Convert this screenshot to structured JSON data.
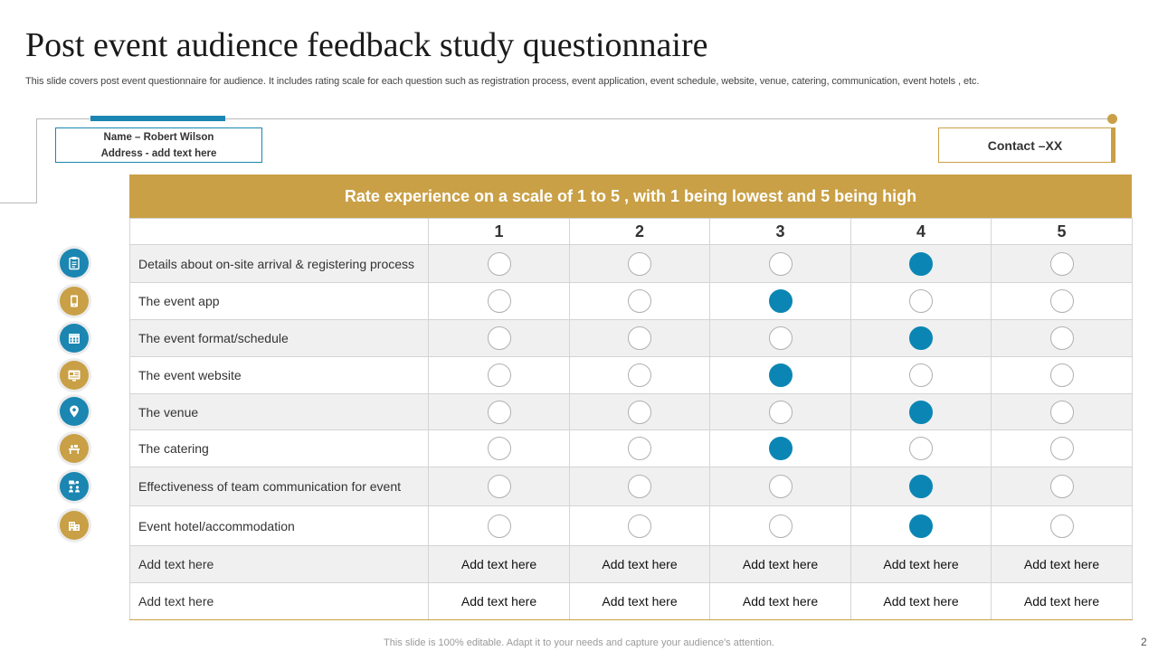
{
  "title": "Post event audience feedback study questionnaire",
  "subtitle": "This slide covers post event questionnaire for audience. It includes rating scale for each question such as registration process, event application, event schedule, website, venue, catering, communication, event hotels , etc.",
  "name_box": {
    "name": "Name – Robert Wilson",
    "address": "Address  - add text here"
  },
  "contact": "Contact –XX",
  "table": {
    "header": "Rate experience on a scale of 1 to 5 , with 1 being lowest and 5 being high",
    "columns": [
      "1",
      "2",
      "3",
      "4",
      "5"
    ],
    "rows": [
      {
        "label": "Details about on-site arrival & registering process",
        "selected": 4,
        "icon": "clipboard-icon",
        "icon_color": "blue"
      },
      {
        "label": "The event app",
        "selected": 3,
        "icon": "mobile-app-icon",
        "icon_color": "gold"
      },
      {
        "label": "The event format/schedule",
        "selected": 4,
        "icon": "calendar-icon",
        "icon_color": "blue"
      },
      {
        "label": "The event website",
        "selected": 3,
        "icon": "website-icon",
        "icon_color": "gold"
      },
      {
        "label": "The venue",
        "selected": 4,
        "icon": "location-pin-icon",
        "icon_color": "blue"
      },
      {
        "label": "The catering",
        "selected": 3,
        "icon": "catering-icon",
        "icon_color": "gold"
      },
      {
        "label": "Effectiveness of team communication for event",
        "selected": 4,
        "icon": "team-communication-icon",
        "icon_color": "blue"
      },
      {
        "label": "Event hotel/accommodation",
        "selected": 4,
        "icon": "hotel-icon",
        "icon_color": "gold"
      }
    ],
    "text_rows": [
      {
        "label": "Add text here",
        "cells": [
          "Add text here",
          "Add text here",
          "Add text here",
          "Add text here",
          "Add text here"
        ]
      },
      {
        "label": "Add text here",
        "cells": [
          "Add text here",
          "Add text here",
          "Add text here",
          "Add text here",
          "Add text here"
        ]
      }
    ]
  },
  "colors": {
    "accent_gold": "#c9a046",
    "accent_blue": "#1b86b1",
    "selected": "#0b86b4"
  },
  "footer": "This slide is 100% editable. Adapt it to your needs and capture your audience's attention.",
  "page_number": "2"
}
